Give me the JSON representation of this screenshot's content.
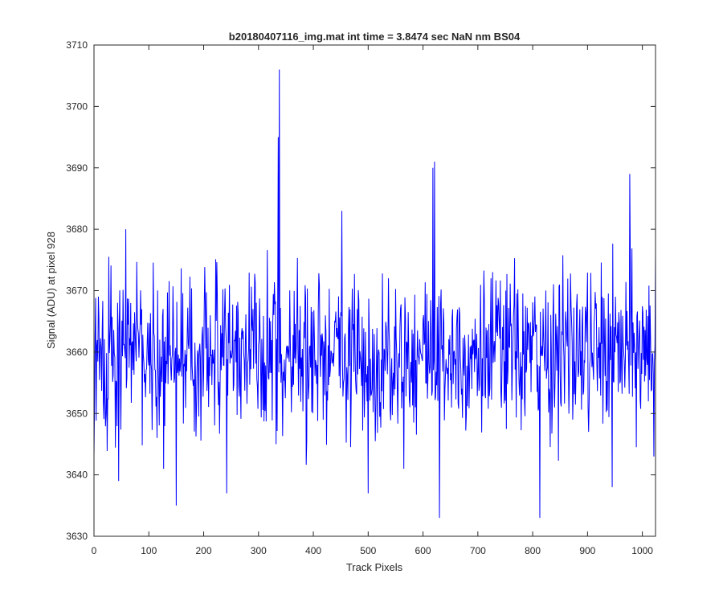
{
  "chart_data": {
    "type": "line",
    "title": "b20180407116_img.mat int time = 3.8474 sec  NaN nm BS04",
    "xlabel": "Track Pixels",
    "ylabel": "Signal (ADU) at pixel 928",
    "xlim": [
      0,
      1024
    ],
    "ylim": [
      3630,
      3710
    ],
    "xticks": [
      "0",
      "100",
      "200",
      "300",
      "400",
      "500",
      "600",
      "700",
      "800",
      "900",
      "1000"
    ],
    "yticks": [
      "3630",
      "3640",
      "3650",
      "3660",
      "3670",
      "3680",
      "3690",
      "3700",
      "3710"
    ],
    "grid": false,
    "legend": "none",
    "series": [
      {
        "color": "#0000ff",
        "stats": {
          "n": 1024,
          "mean": 3660,
          "std": 6.5
        },
        "notable_points": [
          {
            "x": 0,
            "y": 3643
          },
          {
            "x": 45,
            "y": 3639
          },
          {
            "x": 58,
            "y": 3680
          },
          {
            "x": 150,
            "y": 3635
          },
          {
            "x": 242,
            "y": 3637
          },
          {
            "x": 336,
            "y": 3695
          },
          {
            "x": 338,
            "y": 3706
          },
          {
            "x": 452,
            "y": 3683
          },
          {
            "x": 500,
            "y": 3637
          },
          {
            "x": 618,
            "y": 3690
          },
          {
            "x": 621,
            "y": 3691
          },
          {
            "x": 630,
            "y": 3633
          },
          {
            "x": 813,
            "y": 3633
          },
          {
            "x": 945,
            "y": 3638
          },
          {
            "x": 977,
            "y": 3689
          },
          {
            "x": 1021,
            "y": 3643
          },
          {
            "x": 1024,
            "y": 3676
          }
        ]
      }
    ]
  }
}
